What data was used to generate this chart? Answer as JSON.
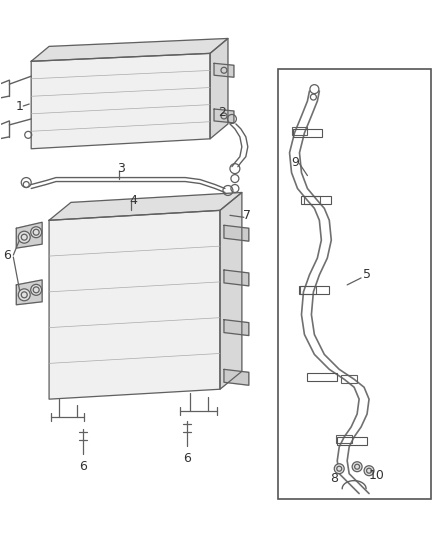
{
  "bg_color": "#ffffff",
  "line_color": "#606060",
  "label_color": "#222222",
  "fig_width": 4.38,
  "fig_height": 5.33,
  "dpi": 100
}
